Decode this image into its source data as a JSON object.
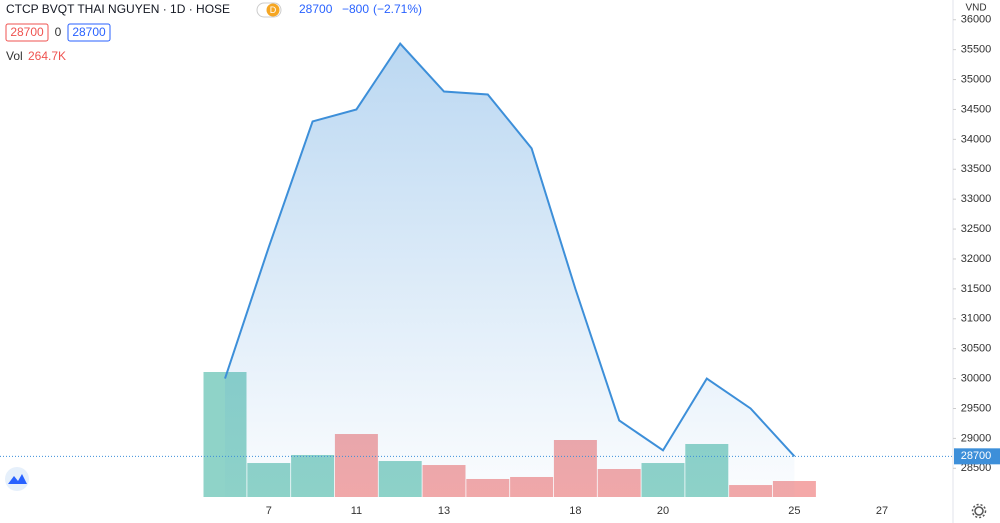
{
  "chart_data": {
    "type": "area",
    "title": "CTCP BVQT THAI NGUYEN · 1D · HOSE",
    "badge": "D",
    "change": "−800",
    "change_pct": "(−2.71%)",
    "bid_ask": [
      28700,
      0,
      28700
    ],
    "unit": "VND",
    "categories": [
      null,
      "7",
      null,
      "11",
      null,
      "13",
      null,
      null,
      "18",
      null,
      "20",
      null,
      null,
      "25",
      null,
      "27"
    ],
    "series": [
      {
        "color": "#3d8fd9",
        "values": [
          30000,
          32200,
          34300,
          34500,
          35600,
          34800,
          34750,
          33850,
          31500,
          29300,
          28800,
          30000,
          29500,
          28700,
          null,
          null
        ]
      }
    ],
    "volume": {
      "name": "Vol",
      "value_label": "264.7K",
      "values": [
        2068000,
        562000,
        695000,
        1042000,
        595000,
        529000,
        298000,
        331000,
        943000,
        463000,
        562000,
        877000,
        198000,
        264700,
        null,
        null
      ],
      "colors": [
        "#8fd3c8",
        "#8fd3c8",
        "#8fd3c8",
        "#f4a8a8",
        "#8fd3c8",
        "#f4a8a8",
        "#f4a8a8",
        "#f4a8a8",
        "#f4a8a8",
        "#f4a8a8",
        "#8fd3c8",
        "#8fd3c8",
        "#f4a8a8",
        "#f4a8a8",
        null,
        null
      ]
    },
    "ylim": [
      28020,
      36330
    ],
    "yticks": [
      28500,
      29000,
      29500,
      30000,
      30500,
      31000,
      31500,
      32000,
      32500,
      33000,
      33500,
      34000,
      34500,
      35000,
      35500,
      36000
    ],
    "grid": false
  }
}
